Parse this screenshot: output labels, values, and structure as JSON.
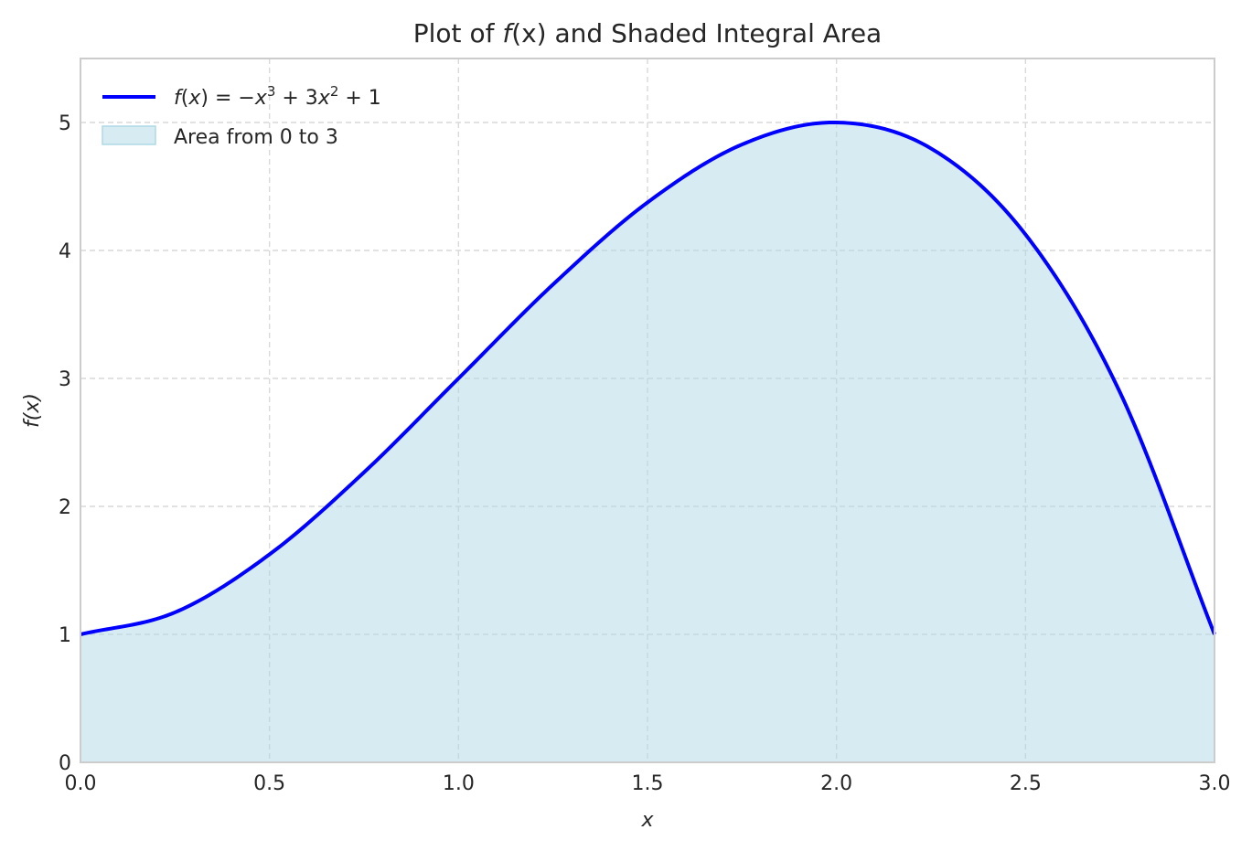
{
  "chart_data": {
    "type": "line",
    "title_prefix": "Plot of ",
    "title_fx": "f",
    "title_x": "(x)",
    "title_suffix": " and Shaded Integral Area",
    "xlabel": "x",
    "ylabel": "f(x)",
    "xlim": [
      0,
      3
    ],
    "ylim": [
      0,
      5.5
    ],
    "x_ticks": [
      0.0,
      0.5,
      1.0,
      1.5,
      2.0,
      2.5,
      3.0
    ],
    "x_tick_labels": [
      "0.0",
      "0.5",
      "1.0",
      "1.5",
      "2.0",
      "2.5",
      "3.0"
    ],
    "y_ticks": [
      0,
      1,
      2,
      3,
      4,
      5
    ],
    "y_tick_labels": [
      "0",
      "1",
      "2",
      "3",
      "4",
      "5"
    ],
    "grid": true,
    "legend_position": "top-left",
    "series": [
      {
        "name": "f(x) = −x³ + 3x² + 1",
        "kind": "line",
        "color": "#0000ff",
        "x": [
          0.0,
          0.25,
          0.5,
          0.75,
          1.0,
          1.25,
          1.5,
          1.75,
          2.0,
          2.25,
          2.5,
          2.75,
          3.0
        ],
        "y": [
          1.0,
          1.172,
          1.625,
          2.266,
          3.0,
          3.734,
          4.375,
          4.828,
          5.0,
          4.797,
          4.125,
          2.891,
          1.0
        ]
      },
      {
        "name": "Area from 0 to 3",
        "kind": "area",
        "color": "#add8e6",
        "x_from": 0,
        "x_to": 3
      }
    ]
  }
}
